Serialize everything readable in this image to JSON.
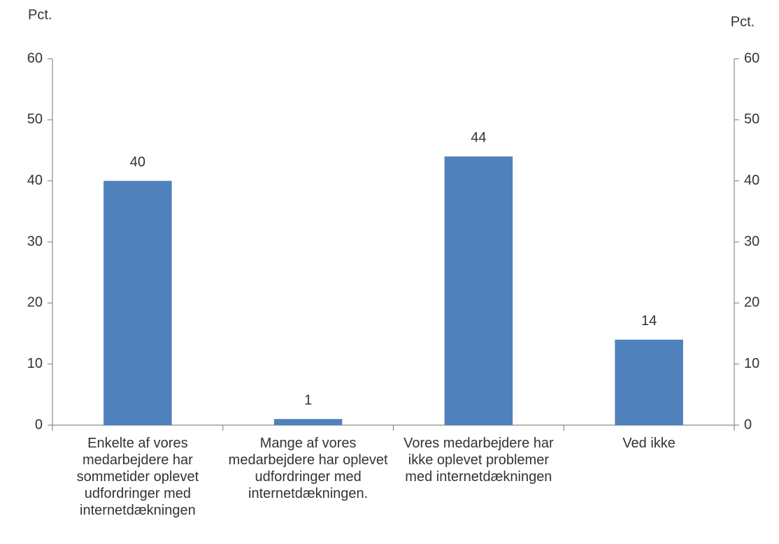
{
  "chart_data": {
    "type": "bar",
    "y_label": "Pct.",
    "y2_label": "Pct.",
    "categories": [
      "Enkelte af vores medarbejdere har sommetider oplevet udfordringer med internetdækningen",
      "Mange af vores medarbejdere har oplevet udfordringer med internetdækningen.",
      "Vores medarbejdere har ikke oplevet problemer med internetdækningen",
      "Ved ikke"
    ],
    "values": [
      40,
      1,
      44,
      14
    ],
    "color": "#4f81bd",
    "ylim": [
      0,
      60
    ],
    "yticks": [
      0,
      10,
      20,
      30,
      40,
      50,
      60
    ],
    "y2lim": [
      0,
      60
    ],
    "y2ticks": [
      0,
      10,
      20,
      30,
      40,
      50,
      60
    ],
    "grid": false
  }
}
